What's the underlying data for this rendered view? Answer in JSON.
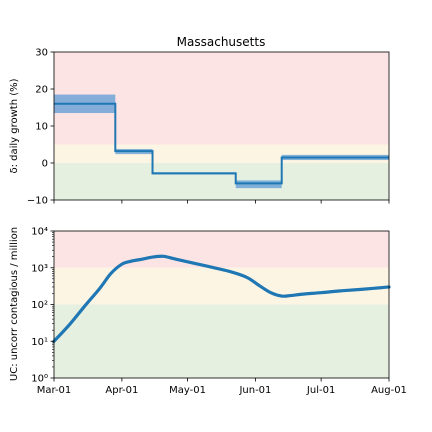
{
  "chart_data": [
    {
      "type": "line",
      "title": "Massachusetts",
      "ylabel": "δ: daily growth (%)",
      "ylim": [
        -10,
        30
      ],
      "yticks": [
        "−10",
        "0",
        "10",
        "20",
        "30"
      ],
      "ytick_values": [
        -10,
        0,
        10,
        20,
        30
      ],
      "xlim": [
        "2020-03-01",
        "2020-08-01"
      ],
      "grid": false,
      "bands": [
        {
          "from": -10,
          "to": 0,
          "color": "#e6f0e1"
        },
        {
          "from": 0,
          "to": 5,
          "color": "#fdf5e4"
        },
        {
          "from": 5,
          "to": 30,
          "color": "#fde4e4"
        }
      ],
      "series": [
        {
          "color": "#1f77b4",
          "band_color": "#5b9bd5",
          "segments": [
            {
              "x": [
                "2020-03-01",
                "2020-03-29"
              ],
              "y": 16.0,
              "ci": [
                13.5,
                18.5
              ]
            },
            {
              "x": [
                "2020-03-29",
                "2020-04-15"
              ],
              "y": 3.2,
              "ci": [
                2.4,
                3.8
              ]
            },
            {
              "x": [
                "2020-04-15",
                "2020-05-23"
              ],
              "y": -2.8,
              "ci": [
                -3.1,
                -2.5
              ]
            },
            {
              "x": [
                "2020-05-23",
                "2020-06-13"
              ],
              "y": -5.5,
              "ci": [
                -6.8,
                -4.7
              ]
            },
            {
              "x": [
                "2020-06-13",
                "2020-08-01"
              ],
              "y": 1.5,
              "ci": [
                0.8,
                2.2
              ]
            }
          ]
        }
      ]
    },
    {
      "type": "line",
      "ylabel": "UC: uncorr contagious / million",
      "yscale": "log",
      "ylim": [
        1,
        10000
      ],
      "yticks": [
        "10⁰",
        "10¹",
        "10²",
        "10³",
        "10⁴"
      ],
      "ytick_values": [
        1,
        10,
        100,
        1000,
        10000
      ],
      "xlim": [
        "2020-03-01",
        "2020-08-01"
      ],
      "xticks": [
        "Mar-01",
        "Apr-01",
        "May-01",
        "Jun-01",
        "Jul-01",
        "Aug-01"
      ],
      "xtick_values": [
        "2020-03-01",
        "2020-04-01",
        "2020-05-01",
        "2020-06-01",
        "2020-07-01",
        "2020-08-01"
      ],
      "grid": false,
      "bands": [
        {
          "from": 1,
          "to": 100,
          "color": "#e6f0e1"
        },
        {
          "from": 100,
          "to": 1000,
          "color": "#fdf5e4"
        },
        {
          "from": 1000,
          "to": 10000,
          "color": "#fde4e4"
        }
      ],
      "series": [
        {
          "color": "#1f77b4",
          "x": [
            "2020-03-01",
            "2020-03-08",
            "2020-03-15",
            "2020-03-22",
            "2020-03-27",
            "2020-04-01",
            "2020-04-05",
            "2020-04-10",
            "2020-04-15",
            "2020-04-20",
            "2020-04-25",
            "2020-05-01",
            "2020-05-10",
            "2020-05-20",
            "2020-05-28",
            "2020-06-03",
            "2020-06-08",
            "2020-06-13",
            "2020-06-17",
            "2020-06-22",
            "2020-07-01",
            "2020-07-10",
            "2020-07-20",
            "2020-08-01"
          ],
          "y": [
            10,
            28,
            90,
            280,
            700,
            1250,
            1500,
            1700,
            1950,
            2050,
            1750,
            1450,
            1100,
            800,
            550,
            320,
            210,
            170,
            175,
            190,
            210,
            235,
            260,
            300
          ]
        }
      ]
    }
  ]
}
